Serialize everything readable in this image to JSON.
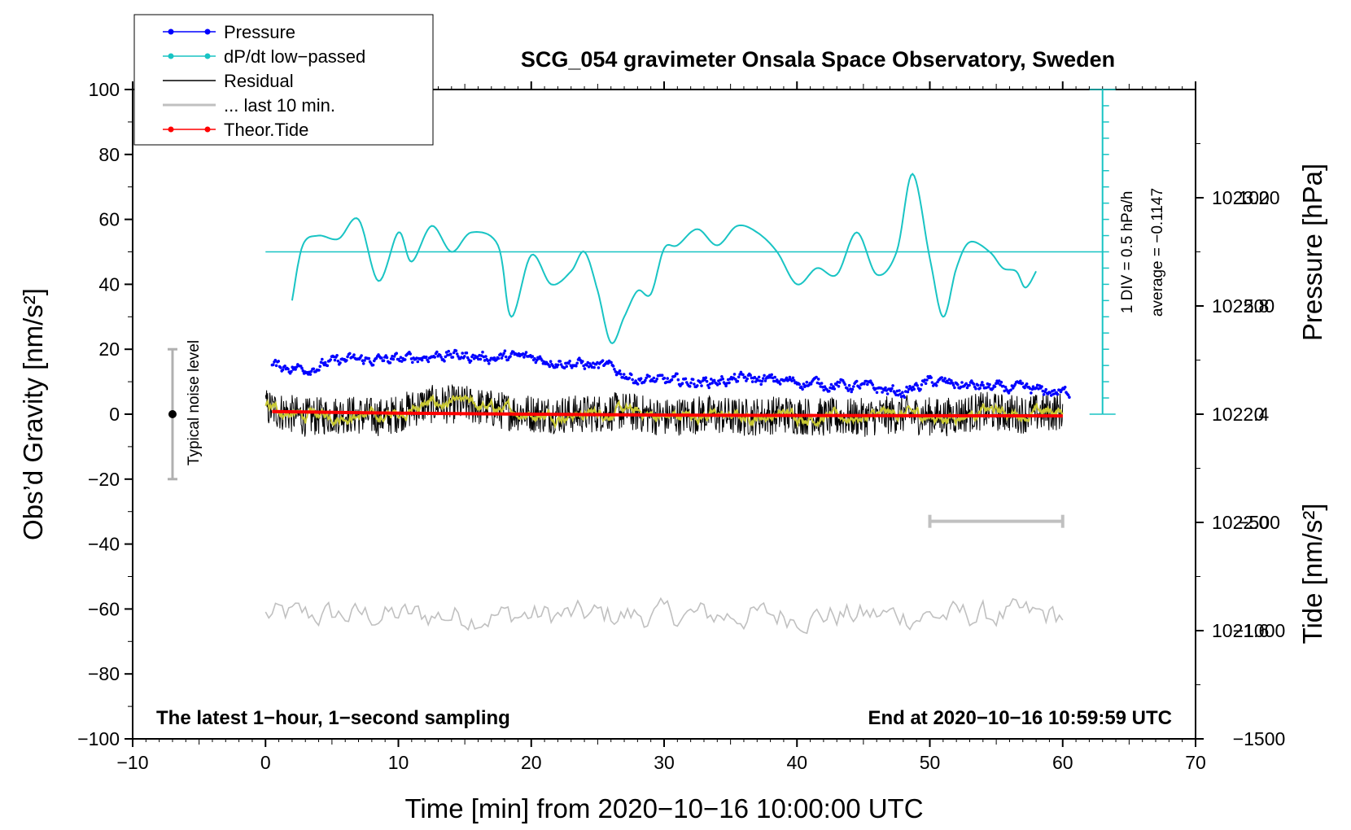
{
  "chart_data": {
    "type": "line",
    "title": "SCG_054 gravimeter Onsala Space Observatory, Sweden",
    "xlabel": "Time [min] from 2020−10−16 10:00:00 UTC",
    "ylabel": "Obs’d Gravity [nm/s²]",
    "ylabel_right_top": "Pressure [hPa]",
    "ylabel_right_bottom": "Tide [nm/s²]",
    "xlim": [
      -10,
      70
    ],
    "ylim": [
      -100,
      100
    ],
    "pressure_lim": [
      1021.2,
      1023.6
    ],
    "tide_lim": [
      -1500,
      1500
    ],
    "x_ticks": [
      "−10",
      "0",
      "10",
      "20",
      "30",
      "40",
      "50",
      "60",
      "70"
    ],
    "y_ticks": [
      "100",
      "80",
      "60",
      "40",
      "20",
      "0",
      "−20",
      "−40",
      "−60",
      "−80",
      "−100"
    ],
    "pressure_ticks": [
      "1023.2",
      "1022.8",
      "1022.4",
      "1022.0",
      "1021.6"
    ],
    "tide_ticks": [
      "1000",
      "500",
      "0",
      "−500",
      "−1000",
      "−1500"
    ],
    "legend": {
      "placement": "top-left",
      "entries": [
        {
          "label": "Pressure",
          "color": "#0000ff",
          "marker": true
        },
        {
          "label": "dP/dt low−passed",
          "color": "#19c4c4",
          "marker": true
        },
        {
          "label": "Residual",
          "color": "#000000",
          "marker": false
        },
        {
          "label": "... last 10 min.",
          "color": "#c0c0c0",
          "marker": false
        },
        {
          "label": "Theor.Tide",
          "color": "#ff0000",
          "marker": true
        }
      ]
    },
    "annotations": {
      "bottom_left": "The latest 1−hour, 1−second sampling",
      "bottom_right": "End at 2020−10−16 10:59:59 UTC",
      "noise": "Typical noise level",
      "div_text": "1 DIV = 0.5 hPa/h",
      "average_text": "average = −0.1147"
    },
    "noise_bar": {
      "x": -7,
      "center": 0,
      "range": [
        -20,
        20
      ]
    },
    "dpdt_baseline": 50,
    "dpdt_scale": {
      "x": 63,
      "range": [
        0,
        100
      ],
      "divisions": 20
    },
    "window_bar": {
      "x": [
        50,
        60
      ],
      "y": -33
    },
    "series": [
      {
        "name": "Pressure",
        "units": "hPa",
        "color": "#0000ff",
        "x": [
          0.5,
          3,
          6,
          10,
          13,
          17,
          20,
          23,
          26,
          28,
          30,
          33,
          36,
          40,
          45,
          48,
          50,
          54,
          57,
          60
        ],
        "values": [
          1022.58,
          1022.57,
          1022.6,
          1022.6,
          1022.62,
          1022.61,
          1022.61,
          1022.59,
          1022.57,
          1022.53,
          1022.52,
          1022.52,
          1022.53,
          1022.52,
          1022.5,
          1022.48,
          1022.52,
          1022.5,
          1022.49,
          1022.48
        ]
      },
      {
        "name": "dP/dt low−passed",
        "units": "nm/s² display",
        "color": "#19c4c4",
        "x": [
          2,
          2.8,
          4,
          5.5,
          7,
          8.5,
          10,
          11,
          12.5,
          14,
          15.5,
          17.5,
          18.5,
          20,
          21.5,
          23,
          24,
          25,
          26,
          27,
          28,
          29,
          30,
          31,
          32.5,
          34,
          35.5,
          37,
          38.5,
          40,
          41.5,
          43,
          44.5,
          46,
          47.5,
          48.7,
          50,
          51,
          52,
          53,
          54.5,
          55.5,
          56.5,
          57.2,
          58
        ],
        "values": [
          35,
          52,
          55,
          54,
          60,
          41,
          56,
          47,
          58,
          50,
          56,
          52,
          30,
          49,
          40,
          44,
          50,
          38,
          22,
          30,
          38,
          37,
          51,
          52,
          57,
          52,
          58,
          56,
          50,
          40,
          45,
          43,
          56,
          43,
          50,
          74,
          48,
          30,
          45,
          53,
          50,
          45,
          44,
          39,
          44
        ]
      },
      {
        "name": "Residual",
        "units": "nm/s²",
        "color": "#000000",
        "x": [
          0,
          3,
          6,
          9,
          12,
          15,
          18,
          21,
          24,
          27,
          30,
          33,
          36,
          39,
          42,
          45,
          48,
          51,
          54,
          57,
          60
        ],
        "values": [
          2,
          -1,
          0,
          -1,
          3,
          3,
          1,
          0,
          0,
          1,
          -1,
          0,
          -1,
          0,
          -1,
          -1,
          0,
          -1,
          1,
          0,
          1
        ]
      },
      {
        "name": "... last 10 min.",
        "units": "nm/s² display",
        "color": "#c0c0c0",
        "x": [
          0,
          10,
          20,
          30,
          40,
          50,
          60
        ],
        "values": [
          -62,
          -62,
          -62,
          -62,
          -62,
          -62,
          -62
        ]
      },
      {
        "name": "Theor.Tide",
        "units": "nm/s²",
        "color": "#ff0000",
        "x": [
          0.5,
          10,
          20,
          30,
          40,
          50,
          60
        ],
        "values": [
          12,
          5,
          0,
          -4,
          -6,
          -7,
          -8
        ]
      }
    ]
  }
}
